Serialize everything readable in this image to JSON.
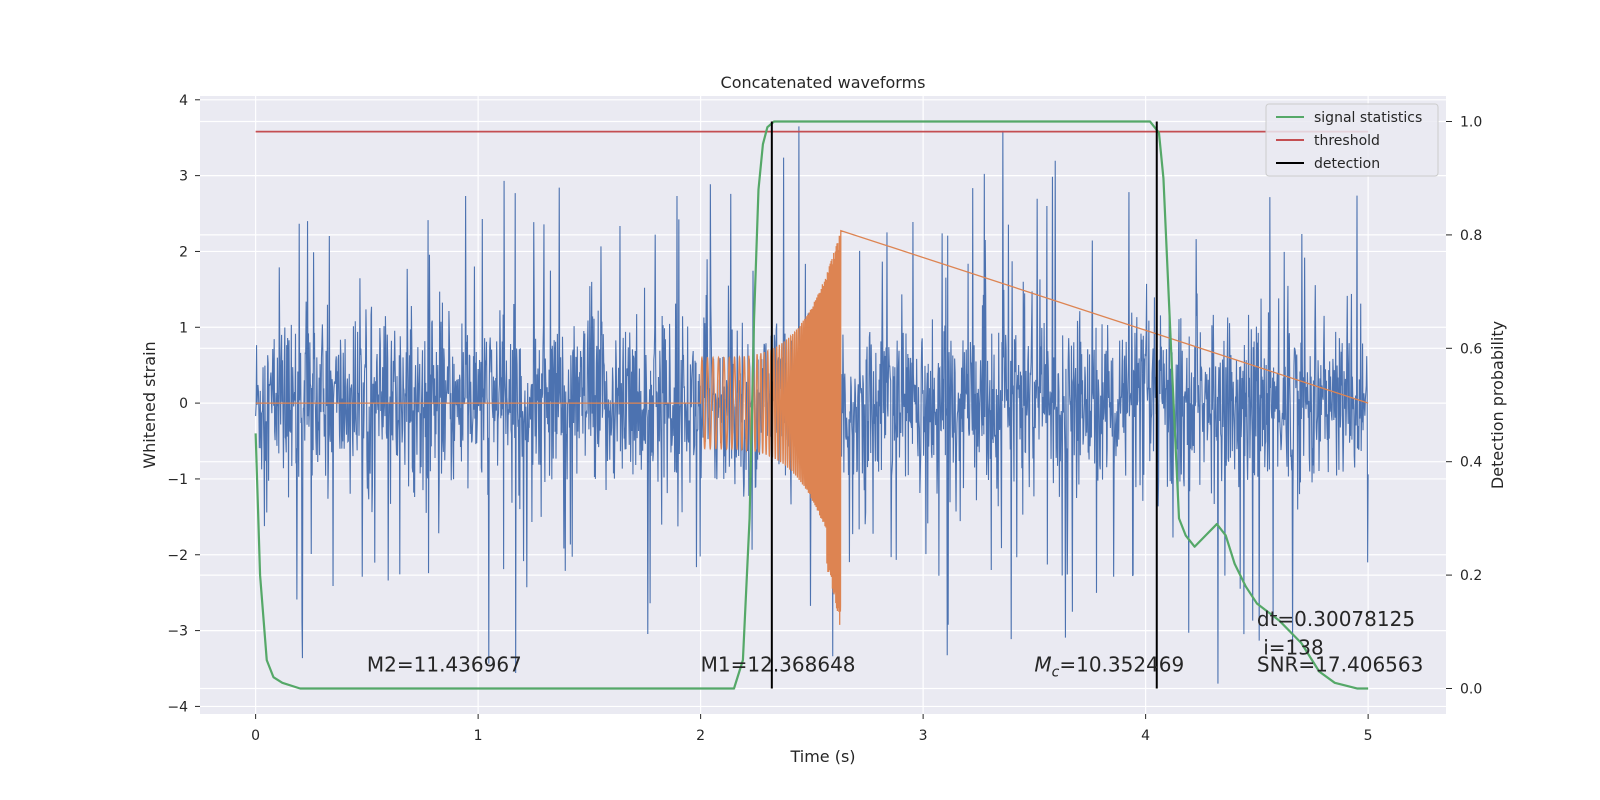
{
  "chart_data": {
    "type": "line",
    "title": "Concatenated waveforms",
    "xlabel": "Time (s)",
    "ylabel_left": "Whitened strain",
    "ylabel_right": "Detection probability",
    "xlim": [
      -0.25,
      5.35
    ],
    "ylim_left": [
      -4.1,
      4.05
    ],
    "ylim_right": [
      -0.045,
      1.045
    ],
    "x_ticks": [
      0,
      1,
      2,
      3,
      4,
      5
    ],
    "y_ticks_left": [
      -4,
      -3,
      -2,
      -1,
      0,
      1,
      2,
      3,
      4
    ],
    "y_ticks_right": [
      0.0,
      0.2,
      0.4,
      0.6,
      0.8,
      1.0
    ],
    "grid": true,
    "legend_position": "top-right",
    "colors": {
      "noise": "#4c72b0",
      "signal": "#dd8452",
      "signal_statistics": "#55a868",
      "threshold": "#c44e52",
      "detection": "#000000",
      "background": "#eaeaf2",
      "grid": "#ffffff"
    },
    "series": [
      {
        "kind": "noise",
        "x_range": [
          0,
          5
        ],
        "envelope": "strain noise, mostly within ±1, spikes to about ±3.6"
      },
      {
        "kind": "signal",
        "x_range": [
          2.0,
          2.63
        ],
        "envelope_start": 0.6,
        "envelope_peak": 2.3,
        "envelope_peak_low": -3.0
      },
      {
        "name": "signal statistics",
        "axis": "right",
        "x": [
          0,
          0.02,
          0.05,
          0.08,
          0.12,
          0.2,
          1.0,
          2.0,
          2.15,
          2.19,
          2.22,
          2.24,
          2.26,
          2.28,
          2.3,
          2.33,
          2.4,
          3.5,
          4.02,
          4.06,
          4.08,
          4.12,
          4.15,
          4.18,
          4.22,
          4.27,
          4.32,
          4.36,
          4.4,
          4.45,
          4.5,
          4.6,
          4.7,
          4.78,
          4.85,
          4.95,
          5.0
        ],
        "y": [
          0.45,
          0.2,
          0.05,
          0.02,
          0.01,
          0.0,
          0.0,
          0.0,
          0.0,
          0.05,
          0.3,
          0.65,
          0.88,
          0.96,
          0.99,
          1.0,
          1.0,
          1.0,
          1.0,
          0.98,
          0.9,
          0.55,
          0.3,
          0.27,
          0.25,
          0.27,
          0.29,
          0.27,
          0.22,
          0.18,
          0.15,
          0.12,
          0.08,
          0.03,
          0.01,
          0.0,
          0.0
        ]
      },
      {
        "name": "threshold",
        "axis": "left",
        "x": [
          0,
          5
        ],
        "y": [
          3.58,
          3.58
        ]
      },
      {
        "name": "detection",
        "axis": "right",
        "vlines": [
          2.32,
          4.05
        ],
        "ymin": 0.0,
        "ymax": 1.0
      }
    ],
    "annotations": [
      {
        "id": "m2",
        "text": "M2=11.436967",
        "x": 0.5,
        "y": 0.03
      },
      {
        "id": "m1",
        "text": "M1=12.368648",
        "x": 2.0,
        "y": 0.03
      },
      {
        "id": "mc",
        "mc_value": "=10.352469",
        "x": 3.5,
        "y": 0.03
      },
      {
        "id": "dt",
        "text": "dt=0.30078125",
        "x": 4.5,
        "y": 0.11
      },
      {
        "id": "i",
        "text": " i=138",
        "x": 4.5,
        "y": 0.06
      },
      {
        "id": "snr",
        "text": "SNR=17.406563",
        "x": 4.5,
        "y": 0.03
      }
    ]
  }
}
